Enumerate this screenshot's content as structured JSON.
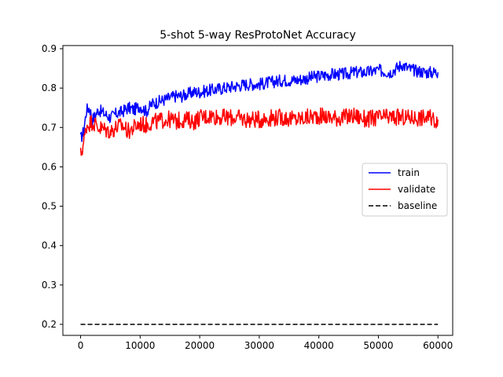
{
  "chart_data": {
    "type": "line",
    "title": "5-shot 5-way ResProtoNet Accuracy",
    "xlabel": "",
    "ylabel": "",
    "xlim": [
      -2975,
      62475
    ],
    "ylim": [
      0.172,
      0.908
    ],
    "x_ticks": [
      0,
      10000,
      20000,
      30000,
      40000,
      50000,
      60000
    ],
    "y_ticks": [
      0.2,
      0.3,
      0.4,
      0.5,
      0.6,
      0.7,
      0.8,
      0.9
    ],
    "grid": false,
    "legend_position": "center-right",
    "series": [
      {
        "name": "train",
        "color": "#0000ff",
        "style": "solid",
        "x": [
          0,
          500,
          1000,
          1500,
          2000,
          3000,
          4000,
          5000,
          6000,
          7000,
          8000,
          9000,
          10000,
          11000,
          12000,
          13000,
          14000,
          15000,
          16000,
          17000,
          18000,
          19000,
          20000,
          22000,
          24000,
          26000,
          28000,
          30000,
          32000,
          34000,
          36000,
          38000,
          40000,
          42000,
          44000,
          46000,
          48000,
          50000,
          52000,
          54000,
          55000,
          56000,
          58000,
          60000
        ],
        "y": [
          0.67,
          0.69,
          0.745,
          0.75,
          0.72,
          0.745,
          0.735,
          0.725,
          0.735,
          0.74,
          0.75,
          0.745,
          0.755,
          0.74,
          0.76,
          0.765,
          0.77,
          0.775,
          0.78,
          0.78,
          0.785,
          0.79,
          0.79,
          0.795,
          0.8,
          0.805,
          0.81,
          0.81,
          0.815,
          0.82,
          0.82,
          0.825,
          0.83,
          0.835,
          0.835,
          0.84,
          0.84,
          0.845,
          0.84,
          0.86,
          0.85,
          0.845,
          0.84,
          0.84
        ]
      },
      {
        "name": "validate",
        "color": "#ff0000",
        "style": "solid",
        "x": [
          0,
          500,
          1000,
          1500,
          2000,
          3000,
          4000,
          5000,
          6000,
          7000,
          8000,
          9000,
          10000,
          11000,
          12000,
          13000,
          14000,
          15000,
          16000,
          17000,
          18000,
          19000,
          20000,
          22000,
          24000,
          26000,
          28000,
          30000,
          32000,
          34000,
          36000,
          38000,
          40000,
          42000,
          44000,
          46000,
          48000,
          50000,
          52000,
          54000,
          56000,
          58000,
          60000
        ],
        "y": [
          0.63,
          0.66,
          0.705,
          0.71,
          0.715,
          0.7,
          0.695,
          0.69,
          0.7,
          0.705,
          0.69,
          0.7,
          0.71,
          0.705,
          0.715,
          0.715,
          0.72,
          0.72,
          0.715,
          0.72,
          0.72,
          0.715,
          0.725,
          0.73,
          0.725,
          0.725,
          0.72,
          0.72,
          0.725,
          0.725,
          0.72,
          0.725,
          0.73,
          0.725,
          0.725,
          0.73,
          0.72,
          0.725,
          0.725,
          0.725,
          0.725,
          0.725,
          0.72
        ]
      },
      {
        "name": "baseline",
        "color": "#000000",
        "style": "dashed",
        "x": [
          0,
          60000
        ],
        "y": [
          0.2,
          0.2
        ]
      }
    ]
  }
}
